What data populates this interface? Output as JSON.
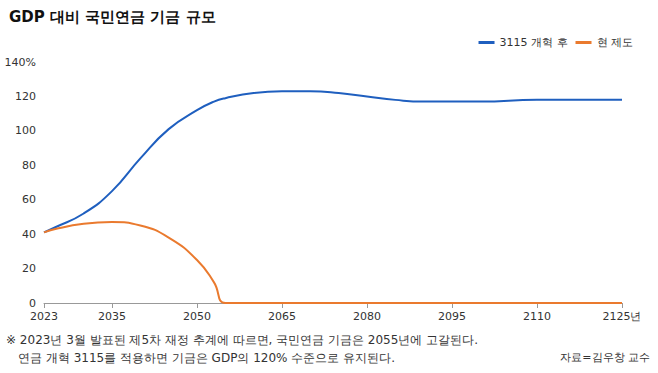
{
  "chart_data": {
    "type": "line",
    "title": "GDP 대비 국민연금 기금 규모",
    "x": [
      2023,
      2025,
      2030,
      2035,
      2040,
      2045,
      2050,
      2053,
      2055,
      2060,
      2065,
      2070,
      2075,
      2080,
      2085,
      2090,
      2095,
      2100,
      2110,
      2120,
      2125
    ],
    "series": [
      {
        "name": "3115 개혁 후",
        "color": "#1f5fbf",
        "values": [
          41,
          44,
          52,
          65,
          84,
          101,
          112,
          117,
          119,
          122,
          123,
          123,
          122,
          120,
          118,
          117,
          117,
          117,
          118,
          118,
          118
        ]
      },
      {
        "name": "현 제도",
        "color": "#ea7a2e",
        "values": [
          41,
          43,
          46,
          47,
          45,
          38,
          25,
          12,
          0,
          0,
          0,
          0,
          0,
          0,
          0,
          0,
          0,
          0,
          0,
          0,
          0
        ]
      }
    ],
    "xlim": [
      2023,
      2125
    ],
    "xticks": [
      2023,
      2035,
      2050,
      2065,
      2080,
      2095,
      2110,
      {
        "value": 2125,
        "label": "2125년"
      }
    ],
    "ylim": [
      0,
      140
    ],
    "yticks": [
      0,
      20,
      40,
      60,
      80,
      100,
      120,
      {
        "value": 140,
        "label": "140%"
      }
    ],
    "grid": false,
    "legend": "upper right",
    "notes": [
      "※ 2023년 3월 발표된 제5차 재정 추계에 따르면, 국민연금 기금은 2055년에 고갈된다.",
      "연금 개혁 3115를 적용하면 기금은 GDP의 120% 수준으로 유지된다."
    ],
    "source": "자료=김우창 교수"
  }
}
